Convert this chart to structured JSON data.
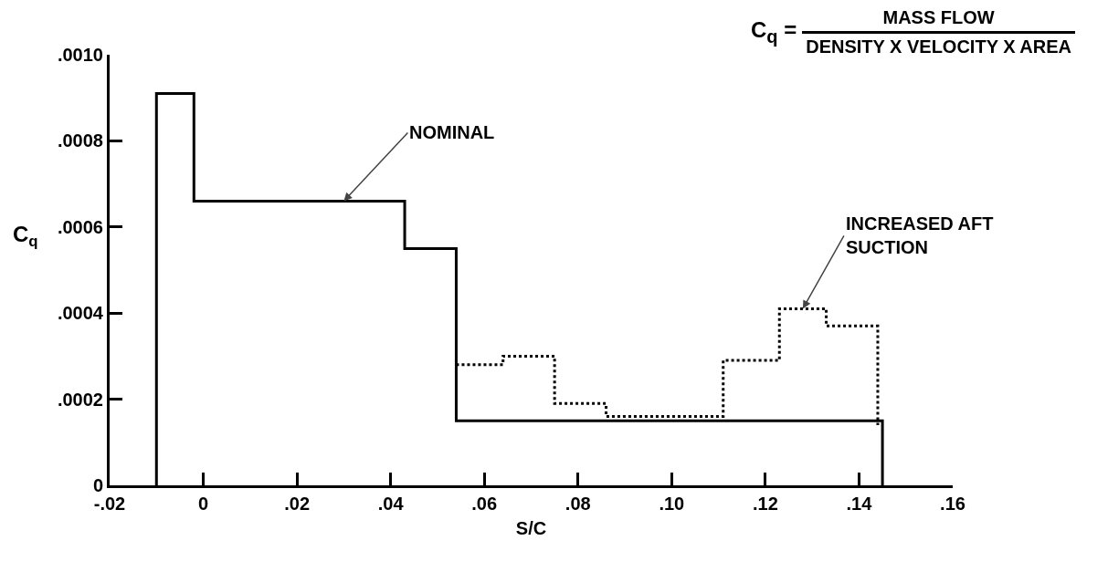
{
  "chart_data": {
    "type": "step",
    "xlabel": "S/C",
    "ylabel": "C$_{q}$",
    "xlim": [
      -0.02,
      0.16
    ],
    "xticks": [
      {
        "value": -0.02,
        "label": "-.02"
      },
      {
        "value": 0,
        "label": "0"
      },
      {
        "value": 0.02,
        "label": ".02"
      },
      {
        "value": 0.04,
        "label": ".04"
      },
      {
        "value": 0.06,
        "label": ".06"
      },
      {
        "value": 0.08,
        "label": ".08"
      },
      {
        "value": 0.1,
        "label": ".10"
      },
      {
        "value": 0.12,
        "label": ".12"
      },
      {
        "value": 0.14,
        "label": ".14"
      },
      {
        "value": 0.16,
        "label": ".16"
      }
    ],
    "ylim": [
      0,
      0.001
    ],
    "yticks": [
      {
        "value": 0,
        "label": "0"
      },
      {
        "value": 0.0002,
        "label": ".0002"
      },
      {
        "value": 0.0004,
        "label": ".0004"
      },
      {
        "value": 0.0006,
        "label": ".0006"
      },
      {
        "value": 0.0008,
        "label": ".0008"
      },
      {
        "value": 0.001,
        "label": ".0010"
      }
    ],
    "series": [
      {
        "color": "#000000",
        "line_style": "solid",
        "x": [
          -0.01,
          -0.01,
          -0.002,
          0.043,
          0.054,
          0.145
        ],
        "values": [
          0,
          0.00091,
          0.00066,
          0.00055,
          0.00015,
          0
        ]
      },
      {
        "color": "#000000",
        "line_style": "dotted",
        "x": [
          0.054,
          0.064,
          0.075,
          0.086,
          0.111,
          0.123,
          0.133,
          0.144
        ],
        "values": [
          0.00028,
          0.0003,
          0.00019,
          0.00016,
          0.00029,
          0.00041,
          0.00037,
          0.00014
        ]
      }
    ],
    "annotations": [
      {
        "text": "NOMINAL",
        "x": 0.03,
        "y": 0.00066
      },
      {
        "text": "INCREASED AFT\nSUCTION",
        "x": 0.128,
        "y": 0.00041
      },
      "C$_{q}$ =",
      "MASS FLOW",
      "DENSITY X VELOCITY X AREA"
    ]
  }
}
